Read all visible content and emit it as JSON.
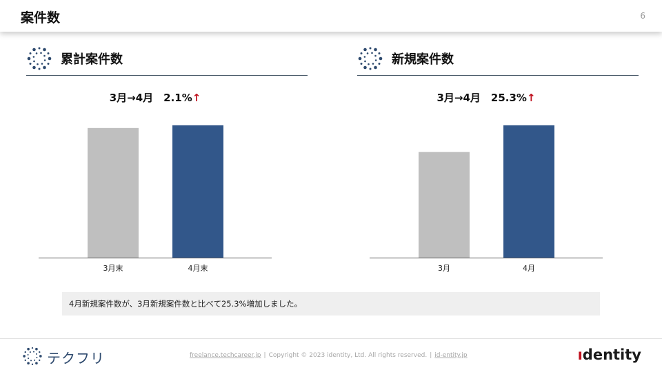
{
  "header": {
    "title": "案件数",
    "page_number": "6"
  },
  "sections": [
    {
      "title": "累計案件数",
      "icon": "sparkle-circle-icon"
    },
    {
      "title": "新規案件数",
      "icon": "sparkle-circle-icon"
    }
  ],
  "colors": {
    "bar_previous": "#bfbfbf",
    "bar_current": "#32578a",
    "up_arrow": "#c0121f",
    "icon_blue": "#2e4a6e"
  },
  "chart_data": [
    {
      "type": "bar",
      "title": "累計案件数",
      "annotation": {
        "text": "3月→4月　2.1%",
        "arrow": "↑"
      },
      "categories": [
        "3月末",
        "4月末"
      ],
      "values": [
        100,
        102.1
      ],
      "ylim": [
        0,
        110
      ],
      "grid": false,
      "legend": "none"
    },
    {
      "type": "bar",
      "title": "新規案件数",
      "annotation": {
        "text": "3月→4月　25.3%",
        "arrow": "↑"
      },
      "categories": [
        "3月",
        "4月"
      ],
      "values": [
        100,
        125.3
      ],
      "ylim": [
        0,
        135
      ],
      "grid": false,
      "legend": "none"
    }
  ],
  "note": "4月新規案件数が、3月新規案件数と比べて25.3%増加しました。",
  "footer": {
    "logo_text": "テクフリ",
    "link1": "freelance.techcareer.jp",
    "copyright": "Copyright © 2023 identity, Ltd. All rights reserved.",
    "link2": "id-entity.jp",
    "separator": "|",
    "brand_dotless": "ı",
    "brand_rest": "dentity"
  }
}
